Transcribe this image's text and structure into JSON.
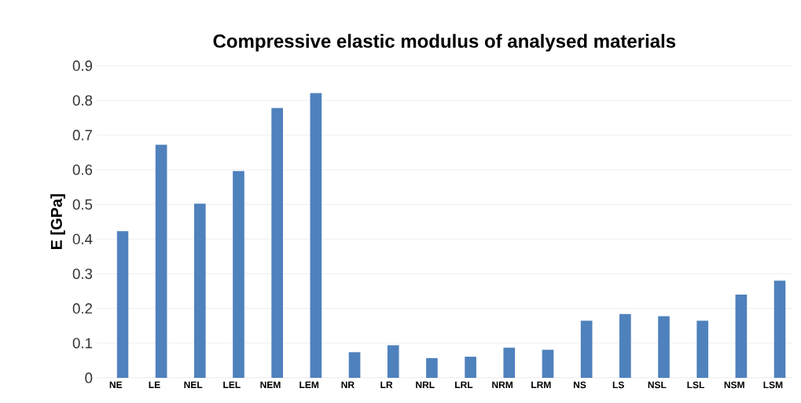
{
  "chart_data": {
    "type": "bar",
    "title": "Compressive elastic modulus of analysed materials",
    "ylabel": "E [GPa]",
    "categories": [
      "NE",
      "LE",
      "NEL",
      "LEL",
      "NEM",
      "LEM",
      "NR",
      "LR",
      "NRL",
      "LRL",
      "NRM",
      "LRM",
      "NS",
      "LS",
      "NSL",
      "LSL",
      "NSM",
      "LSM"
    ],
    "values": [
      0.423,
      0.672,
      0.502,
      0.596,
      0.778,
      0.821,
      0.074,
      0.094,
      0.057,
      0.061,
      0.087,
      0.081,
      0.165,
      0.184,
      0.178,
      0.165,
      0.24,
      0.28
    ],
    "color": "#4f81bd",
    "ylim": [
      0,
      0.9
    ],
    "yticks": [
      0,
      0.1,
      0.2,
      0.3,
      0.4,
      0.5,
      0.6,
      0.7,
      0.8,
      0.9
    ],
    "grid": "y",
    "legend": false
  }
}
